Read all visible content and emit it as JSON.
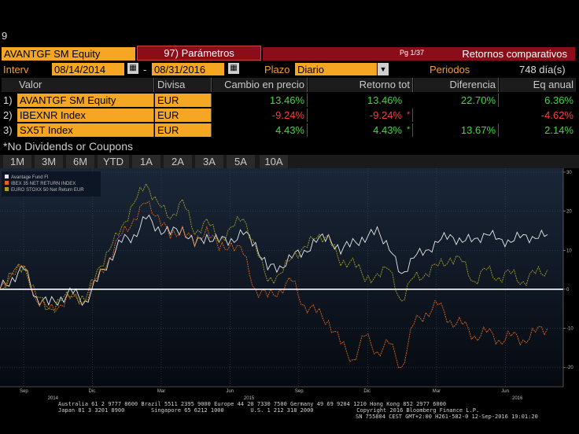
{
  "top_label": "9",
  "ticker": "AVANTGF SM Equity",
  "params_button": "97) Parámetros",
  "page_indicator": "Pg 1/37",
  "page_title": "Retornos comparativos",
  "interv_label": "Interv",
  "date_start": "08/14/2014",
  "date_sep": "-",
  "date_end": "08/31/2016",
  "plazo_label": "Plazo",
  "plazo_value": "Diario",
  "periodos_label": "Periodos",
  "periodos_value": "748 día(s)",
  "table": {
    "headers": [
      "Valor",
      "Divisa",
      "Cambio en precio",
      "Retorno tot",
      "Diferencia",
      "Eq anual"
    ],
    "rows": [
      {
        "num": "1)",
        "valor": "AVANTGF SM Equity",
        "divisa": "EUR",
        "cambio": "13.46%",
        "retorno": "13.46%",
        "star": "",
        "diferencia": "22.70%",
        "eq": "6.36%"
      },
      {
        "num": "2)",
        "valor": "IBEXNR Index",
        "divisa": "EUR",
        "cambio": "-9.24%",
        "retorno": "-9.24%",
        "star": "*",
        "diferencia": "",
        "eq": "-4.62%"
      },
      {
        "num": "3)",
        "valor": "SX5T Index",
        "divisa": "EUR",
        "cambio": "4.43%",
        "retorno": "4.43%",
        "star": "*",
        "diferencia": "13.67%",
        "eq": "2.14%"
      }
    ]
  },
  "no_dividends": "*No Dividends or Coupons",
  "tabs": [
    "1M",
    "3M",
    "6M",
    "YTD",
    "1A",
    "2A",
    "3A",
    "5A",
    "10A"
  ],
  "footer": {
    "line1": "Australia 61 2 9777 8600 Brazil 5511 2395 9000 Europe 44 20 7330 7500 Germany 49 69 9204 1210 Hong Kong 852 2977 6000",
    "line2": "Japan 81 3 3201 8900        Singapore 65 6212 1000        U.S. 1 212 318 2000             Copyright 2016 Bloomberg Finance L.P.",
    "line3": "SN 755804 CEST GMT+2:00 H261-582-0 12-Sep-2016 19:01:20"
  },
  "colors": {
    "orange": "#f5a623",
    "dark_red": "#8b0d1a",
    "series_avantage": "#e8e8e8",
    "series_ibex": "#e0651a",
    "series_stoxx": "#a8a020",
    "positive": "#3ddc3d",
    "negative": "#ff3b3b"
  },
  "chart_data": {
    "type": "line",
    "legend": [
      "Avantage Fund FI",
      "IBEX 35 NET RETURN INDEX",
      "EURO STOXX 50 Net Return EUR"
    ],
    "legend_placement": "top-left",
    "x_ticks": [
      "Sep",
      "Dic",
      "Mar",
      "Jun",
      "Sep",
      "Dic",
      "Mar",
      "Jun"
    ],
    "x_year_labels": [
      "2014",
      "2015",
      "2016"
    ],
    "y_ticks": [
      30,
      20,
      10,
      0,
      -10,
      -20
    ],
    "ylim": [
      -25,
      31
    ],
    "grid": true,
    "series": [
      {
        "name": "Avantage Fund FI",
        "color": "#e8e8e8",
        "values": [
          0,
          3,
          5,
          -2,
          -4,
          -2,
          -1,
          -3,
          2,
          8,
          12,
          14,
          18,
          16,
          14,
          16,
          11,
          14,
          12,
          13,
          14,
          12,
          5,
          6,
          8,
          10,
          12,
          14,
          9,
          13,
          12,
          16,
          10,
          4,
          8,
          10,
          12,
          14,
          12,
          13,
          14,
          13,
          12,
          14,
          13,
          14
        ]
      },
      {
        "name": "IBEX 35 NET RETURN INDEX",
        "color": "#e0651a",
        "values": [
          0,
          4,
          6,
          -3,
          -5,
          -4,
          -2,
          -3,
          3,
          8,
          14,
          18,
          22,
          19,
          13,
          16,
          11,
          16,
          10,
          12,
          9,
          0,
          -2,
          0,
          2,
          -4,
          -6,
          -8,
          -14,
          -18,
          -12,
          -16,
          -14,
          -20,
          -9,
          -6,
          -4,
          -8,
          -9,
          -12,
          -11,
          -13,
          -12,
          -13,
          -11,
          -10
        ]
      },
      {
        "name": "EURO STOXX 50 Net Return EUR",
        "color": "#a8a020",
        "values": [
          0,
          4,
          6,
          -2,
          -5,
          -3,
          -1,
          -3,
          5,
          10,
          16,
          22,
          27,
          22,
          18,
          23,
          14,
          18,
          12,
          16,
          18,
          11,
          2,
          4,
          8,
          11,
          13,
          14,
          6,
          8,
          2,
          4,
          5,
          -3,
          3,
          4,
          6,
          8,
          7,
          2,
          5,
          3,
          4,
          2,
          4,
          5
        ]
      }
    ]
  }
}
